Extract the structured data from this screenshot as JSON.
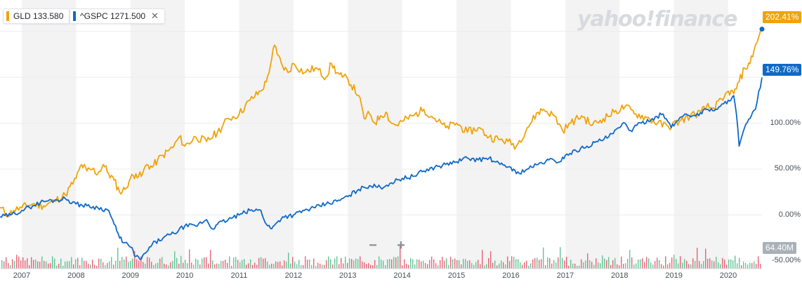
{
  "legend": [
    {
      "symbol": "GLD",
      "value": "133.580",
      "color": "#f0a30a",
      "closable": false
    },
    {
      "symbol": "^GSPC",
      "value": "1271.500",
      "color": "#0f69c8",
      "closable": true,
      "close_icon": "close-icon"
    }
  ],
  "brand": "yahoo!finance",
  "last_tags": {
    "gld": "202.41%",
    "gspc": "149.76%"
  },
  "volume_label": "64.40M",
  "zoom": {
    "minus": "−",
    "plus": "+"
  },
  "colors": {
    "gld": "#f0a30a",
    "gspc": "#0f69c8",
    "vol_up": "#2fb475",
    "vol_down": "#e3334e",
    "band": "#f3f3f3"
  },
  "chart_data": {
    "type": "line",
    "y_unit": "percent change",
    "ylim": [
      -50,
      215
    ],
    "y_ticks": [
      {
        "v": 100,
        "label": "100.00%"
      },
      {
        "v": 50,
        "label": "50.00%"
      },
      {
        "v": 0,
        "label": "0.00%"
      },
      {
        "v": -50,
        "label": "-50.00%"
      }
    ],
    "x_range": [
      2006.6,
      2020.62
    ],
    "x_ticks": [
      "2007",
      "2008",
      "2009",
      "2010",
      "2011",
      "2012",
      "2013",
      "2014",
      "2015",
      "2016",
      "2017",
      "2018",
      "2019",
      "2020"
    ],
    "grid": true,
    "legend_position": "top-left",
    "series": [
      {
        "name": "GLD",
        "color": "#f0a30a",
        "x": [
          2006.6,
          2006.75,
          2006.85,
          2007.0,
          2007.2,
          2007.4,
          2007.6,
          2007.8,
          2008.0,
          2008.1,
          2008.2,
          2008.3,
          2008.4,
          2008.5,
          2008.6,
          2008.7,
          2008.8,
          2008.9,
          2009.0,
          2009.1,
          2009.2,
          2009.3,
          2009.4,
          2009.5,
          2009.6,
          2009.7,
          2009.8,
          2009.9,
          2010.0,
          2010.2,
          2010.4,
          2010.6,
          2010.8,
          2011.0,
          2011.2,
          2011.4,
          2011.5,
          2011.6,
          2011.65,
          2011.7,
          2011.8,
          2011.9,
          2012.0,
          2012.2,
          2012.4,
          2012.6,
          2012.7,
          2012.8,
          2012.9,
          2013.0,
          2013.2,
          2013.3,
          2013.4,
          2013.5,
          2013.6,
          2013.7,
          2013.8,
          2013.9,
          2014.0,
          2014.2,
          2014.4,
          2014.6,
          2014.8,
          2015.0,
          2015.2,
          2015.4,
          2015.6,
          2015.8,
          2015.95,
          2016.1,
          2016.3,
          2016.5,
          2016.6,
          2016.8,
          2016.95,
          2017.1,
          2017.3,
          2017.5,
          2017.7,
          2017.9,
          2018.1,
          2018.3,
          2018.5,
          2018.7,
          2018.9,
          2019.1,
          2019.3,
          2019.5,
          2019.6,
          2019.7,
          2019.9,
          2020.0,
          2020.1,
          2020.2,
          2020.3,
          2020.4,
          2020.5,
          2020.62
        ],
        "y": [
          8,
          0,
          5,
          8,
          12,
          10,
          15,
          22,
          40,
          55,
          48,
          50,
          45,
          55,
          45,
          38,
          25,
          28,
          40,
          45,
          42,
          55,
          52,
          60,
          65,
          70,
          75,
          85,
          75,
          85,
          80,
          90,
          105,
          110,
          125,
          135,
          145,
          170,
          185,
          175,
          162,
          155,
          165,
          155,
          160,
          150,
          165,
          155,
          150,
          148,
          130,
          105,
          110,
          100,
          108,
          112,
          100,
          98,
          102,
          108,
          115,
          105,
          95,
          100,
          90,
          95,
          85,
          82,
          80,
          75,
          95,
          112,
          115,
          108,
          92,
          100,
          108,
          98,
          105,
          112,
          118,
          110,
          106,
          100,
          96,
          102,
          108,
          112,
          118,
          116,
          125,
          135,
          132,
          145,
          160,
          165,
          185,
          202.41
        ]
      },
      {
        "name": "^GSPC",
        "color": "#0f69c8",
        "x": [
          2006.6,
          2006.8,
          2007.0,
          2007.2,
          2007.4,
          2007.6,
          2007.8,
          2008.0,
          2008.2,
          2008.4,
          2008.6,
          2008.7,
          2008.8,
          2008.9,
          2009.0,
          2009.1,
          2009.2,
          2009.3,
          2009.4,
          2009.6,
          2009.8,
          2010.0,
          2010.2,
          2010.4,
          2010.5,
          2010.6,
          2010.8,
          2011.0,
          2011.2,
          2011.4,
          2011.5,
          2011.6,
          2011.7,
          2011.8,
          2012.0,
          2012.2,
          2012.4,
          2012.6,
          2012.8,
          2013.0,
          2013.2,
          2013.4,
          2013.6,
          2013.8,
          2014.0,
          2014.2,
          2014.4,
          2014.6,
          2014.8,
          2015.0,
          2015.2,
          2015.4,
          2015.6,
          2015.7,
          2015.8,
          2016.0,
          2016.1,
          2016.3,
          2016.5,
          2016.7,
          2016.9,
          2017.0,
          2017.2,
          2017.4,
          2017.6,
          2017.8,
          2018.0,
          2018.1,
          2018.2,
          2018.4,
          2018.6,
          2018.8,
          2018.95,
          2019.05,
          2019.2,
          2019.4,
          2019.6,
          2019.8,
          2020.0,
          2020.1,
          2020.15,
          2020.2,
          2020.3,
          2020.4,
          2020.5,
          2020.62
        ],
        "y": [
          -2,
          0,
          5,
          10,
          15,
          16,
          18,
          12,
          10,
          8,
          5,
          -10,
          -25,
          -30,
          -35,
          -45,
          -48,
          -40,
          -32,
          -25,
          -20,
          -12,
          -12,
          -5,
          -15,
          -10,
          -5,
          0,
          5,
          5,
          -10,
          -15,
          -8,
          -2,
          0,
          5,
          8,
          12,
          15,
          20,
          28,
          32,
          30,
          35,
          40,
          42,
          48,
          52,
          55,
          58,
          62,
          60,
          62,
          58,
          55,
          52,
          45,
          50,
          55,
          60,
          58,
          65,
          70,
          75,
          80,
          85,
          95,
          100,
          92,
          100,
          105,
          110,
          95,
          102,
          110,
          108,
          115,
          115,
          125,
          130,
          110,
          75,
          95,
          105,
          115,
          149.76
        ]
      }
    ],
    "volume": {
      "unit": "shares",
      "latest": "64.40M"
    }
  }
}
